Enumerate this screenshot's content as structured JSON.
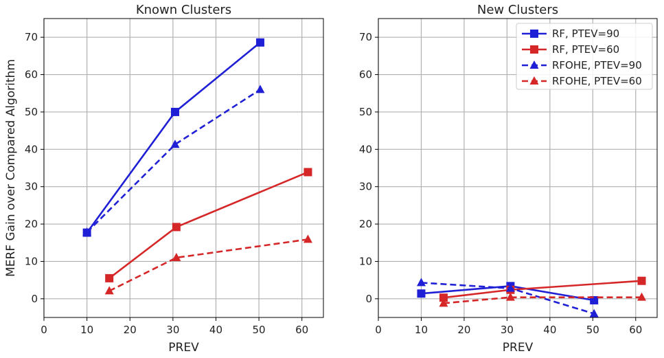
{
  "chart_data": [
    {
      "type": "line",
      "title": "Known Clusters",
      "xlabel": "PREV",
      "ylabel": "MERF Gain over Compared Algorithm",
      "xlim": [
        0,
        65
      ],
      "ylim": [
        -5,
        75
      ],
      "xticks": [
        0,
        10,
        20,
        30,
        40,
        50,
        60
      ],
      "yticks": [
        0,
        10,
        20,
        30,
        40,
        50,
        60,
        70
      ],
      "grid": true,
      "series": [
        {
          "name": "RF, PTEV=90",
          "color": "#1f1fd6",
          "dash": "solid",
          "marker": "square",
          "x": [
            10,
            30.5,
            50.3
          ],
          "y": [
            17.7,
            50.0,
            68.6
          ]
        },
        {
          "name": "RF, PTEV=60",
          "color": "#d62728",
          "dash": "solid",
          "marker": "square",
          "x": [
            15.2,
            30.8,
            61.4
          ],
          "y": [
            5.5,
            19.2,
            33.9
          ]
        },
        {
          "name": "RFOHE, PTEV=90",
          "color": "#1f1fd6",
          "dash": "dashed",
          "marker": "triangle",
          "x": [
            10,
            30.5,
            50.3
          ],
          "y": [
            17.8,
            41.3,
            56.0
          ]
        },
        {
          "name": "RFOHE, PTEV=60",
          "color": "#d62728",
          "dash": "dashed",
          "marker": "triangle",
          "x": [
            15.2,
            30.8,
            61.4
          ],
          "y": [
            2.1,
            11.0,
            15.9
          ]
        }
      ]
    },
    {
      "type": "line",
      "title": "New Clusters",
      "xlabel": "PREV",
      "ylabel": "",
      "xlim": [
        0,
        65
      ],
      "ylim": [
        -5,
        75
      ],
      "xticks": [
        0,
        10,
        20,
        30,
        40,
        50,
        60
      ],
      "yticks": [
        0,
        10,
        20,
        30,
        40,
        50,
        60,
        70
      ],
      "grid": true,
      "legend_position": "top-right",
      "series": [
        {
          "name": "RF, PTEV=90",
          "color": "#1f1fd6",
          "dash": "solid",
          "marker": "square",
          "x": [
            10,
            30.8,
            50.3
          ],
          "y": [
            1.4,
            3.4,
            -0.4
          ]
        },
        {
          "name": "RF, PTEV=60",
          "color": "#d62728",
          "dash": "solid",
          "marker": "square",
          "x": [
            15.2,
            30.8,
            61.4
          ],
          "y": [
            0.3,
            2.4,
            4.8
          ]
        },
        {
          "name": "RFOHE, PTEV=90",
          "color": "#1f1fd6",
          "dash": "dashed",
          "marker": "triangle",
          "x": [
            10,
            30.8,
            50.3
          ],
          "y": [
            4.3,
            2.8,
            -4.0
          ]
        },
        {
          "name": "RFOHE, PTEV=60",
          "color": "#d62728",
          "dash": "dashed",
          "marker": "triangle",
          "x": [
            15.2,
            30.8,
            61.4
          ],
          "y": [
            -1.2,
            0.4,
            0.4
          ]
        }
      ]
    }
  ]
}
